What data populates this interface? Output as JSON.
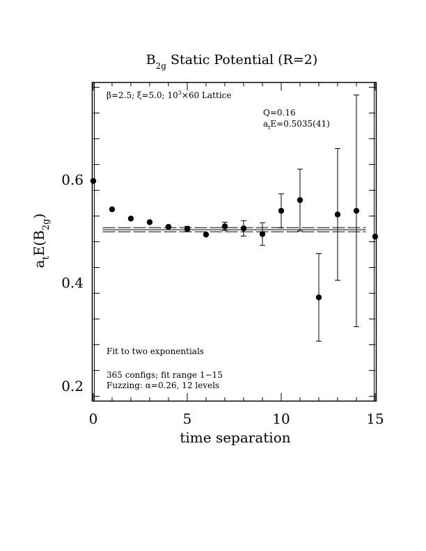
{
  "chart_data": {
    "type": "scatter",
    "title_main": "B",
    "title_sub": "2g",
    "title_rest": " Static Potential (R=2)",
    "xlabel": "time separation",
    "ylabel": "a",
    "ylabel_sub1": "t",
    "ylabel_mid": "E(B",
    "ylabel_sub2": "2g",
    "ylabel_end": ")",
    "xlim": [
      0,
      15
    ],
    "ylim": [
      0.17,
      0.79
    ],
    "xticks": [
      0,
      5,
      10,
      15
    ],
    "xtick_labels": [
      "0",
      "5",
      "10",
      "15"
    ],
    "yticks": [
      0.2,
      0.4,
      0.6
    ],
    "ytick_labels": [
      "0.2",
      "0.4",
      "0.6"
    ],
    "grid": false,
    "lattice_prefix": "β=2.5; ξ=5.0; 10",
    "lattice_sup": "3",
    "lattice_suffix": "×60 Lattice",
    "q_label": "Q=0.16",
    "energy_a": "a",
    "energy_sub": "t",
    "energy_rest": "E=0.5035(41)",
    "fit_label": "Fit to two exponentials",
    "configs_label": "365 configs; fit range 1−15",
    "fuzzing_label": "Fuzzing: α=0.26, 12 levels",
    "fit": {
      "value": 0.5035,
      "error": 0.0041,
      "x_range": [
        0.5,
        14.5
      ]
    },
    "points": [
      {
        "x": 0,
        "y": 0.598,
        "err": 0.001
      },
      {
        "x": 1,
        "y": 0.543,
        "err": 0.002
      },
      {
        "x": 2,
        "y": 0.525,
        "err": 0.002
      },
      {
        "x": 3,
        "y": 0.518,
        "err": 0.003
      },
      {
        "x": 4,
        "y": 0.509,
        "err": 0.004
      },
      {
        "x": 5,
        "y": 0.505,
        "err": 0.005
      },
      {
        "x": 6,
        "y": 0.494,
        "err": 0.004
      },
      {
        "x": 7,
        "y": 0.51,
        "err": 0.008
      },
      {
        "x": 8,
        "y": 0.506,
        "err": 0.015
      },
      {
        "x": 9,
        "y": 0.495,
        "err": 0.022
      },
      {
        "x": 10,
        "y": 0.54,
        "err": 0.033
      },
      {
        "x": 11,
        "y": 0.561,
        "err": 0.06
      },
      {
        "x": 12,
        "y": 0.372,
        "err": 0.085
      },
      {
        "x": 13,
        "y": 0.533,
        "err": 0.128
      },
      {
        "x": 14,
        "y": 0.54,
        "err": 0.225
      },
      {
        "x": 15,
        "y": 0.49,
        "err": 0.002
      }
    ]
  }
}
